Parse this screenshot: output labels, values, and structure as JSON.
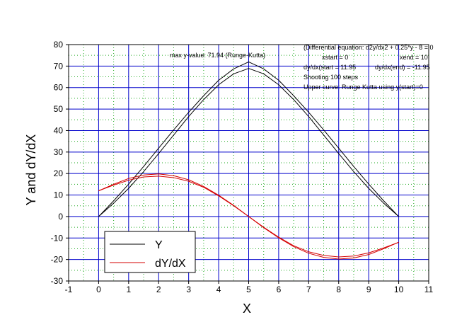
{
  "chart_data": {
    "type": "line",
    "xlabel": "X",
    "ylabel": "Y and dY/dX",
    "xlim": [
      -1,
      11
    ],
    "ylim": [
      -30,
      80
    ],
    "x_ticks": [
      -1,
      0,
      1,
      2,
      3,
      4,
      5,
      6,
      7,
      8,
      9,
      10,
      11
    ],
    "y_ticks": [
      -30,
      -20,
      -10,
      0,
      10,
      20,
      30,
      40,
      50,
      60,
      70,
      80
    ],
    "major_grid": true,
    "minor_grid": true,
    "grid_color": "#0000cc",
    "minor_grid_color": "#22aa22",
    "legend_position": "bottom-left",
    "annotations": {
      "max": "max y-value: 71.94  (Runge-Kutta)",
      "eq": "(Differential equation: d2y/dx2 + 0.25*y - 8 = 0",
      "xstart": "xstart = 0",
      "xend": "xend = 10",
      "dydx_start": "dy/dx(start = 11.95",
      "dydx_end": "dy/dx(end) = -11.95",
      "shooting": "Shooting 100  steps",
      "upper": "Upper curve: Runge Kutta using y(start)=0"
    },
    "x": [
      0,
      0.5,
      1,
      1.5,
      2,
      2.5,
      3,
      3.5,
      4,
      4.5,
      5,
      5.5,
      6,
      6.5,
      7,
      7.5,
      8,
      8.5,
      9,
      9.5,
      10
    ],
    "series": [
      {
        "name": "Y",
        "color": "#000000",
        "values": [
          0,
          6.2,
          13.1,
          20.9,
          29.3,
          37.9,
          46.5,
          54.4,
          61.3,
          66.4,
          68.9,
          66.4,
          61.3,
          54.4,
          46.5,
          37.9,
          29.3,
          20.9,
          13.1,
          6.2,
          0
        ]
      },
      {
        "name": "",
        "color": "#000000",
        "values": [
          0,
          7.3,
          15.1,
          23.3,
          31.8,
          40.3,
          48.5,
          56.2,
          63.4,
          68.7,
          71.94,
          68.7,
          63.4,
          56.2,
          48.5,
          40.3,
          31.8,
          23.3,
          15.1,
          7.3,
          0
        ]
      },
      {
        "name": "dY/dX",
        "color": "#d40000",
        "values": [
          12.0,
          14.6,
          16.9,
          18.4,
          18.8,
          18.1,
          16.4,
          13.6,
          9.6,
          5.0,
          0,
          -5.0,
          -9.6,
          -13.6,
          -16.4,
          -18.1,
          -18.8,
          -18.4,
          -16.9,
          -14.6,
          -12.0
        ]
      },
      {
        "name": "",
        "color": "#d40000",
        "values": [
          11.95,
          15.0,
          17.7,
          19.3,
          19.8,
          19.0,
          17.1,
          14.0,
          9.9,
          5.2,
          0,
          -5.2,
          -9.9,
          -14.0,
          -17.1,
          -19.0,
          -19.8,
          -19.3,
          -17.7,
          -15.0,
          -11.95
        ]
      }
    ]
  }
}
